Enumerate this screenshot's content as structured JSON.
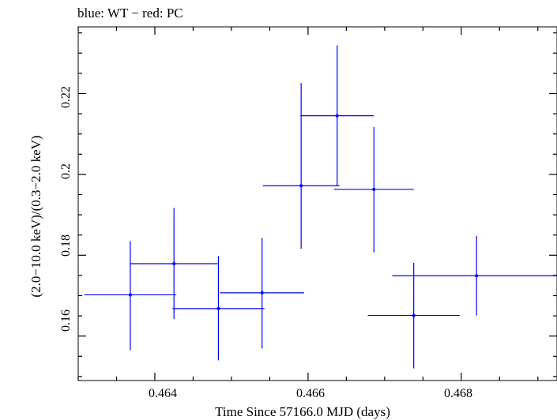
{
  "chart_data": {
    "type": "scatter",
    "title": "blue: WT − red: PC",
    "xlabel": "Time Since 57166.0 MJD (days)",
    "ylabel": "(2.0−10.0 keV)/(0.3−2.0 keV)",
    "xlim": [
      0.463,
      0.46925
    ],
    "ylim": [
      0.149,
      0.2365
    ],
    "x_ticks_major": [
      "0.464",
      "0.466",
      "0.468"
    ],
    "y_ticks_major": [
      "0.16",
      "0.18",
      "0.2",
      "0.22"
    ],
    "colors": {
      "wt": "#0000ff",
      "frame": "#000000"
    },
    "series": [
      {
        "color": "#0000ff",
        "points": [
          {
            "x": 0.46368,
            "x_err": 0.0006,
            "y": 0.1702,
            "y_err_low": 0.0137,
            "y_err_high": 0.0133
          },
          {
            "x": 0.46425,
            "x_err": 0.00057,
            "y": 0.1779,
            "y_err_low": 0.0137,
            "y_err_high": 0.0138
          },
          {
            "x": 0.46483,
            "x_err": 0.0006,
            "y": 0.1668,
            "y_err_low": 0.0128,
            "y_err_high": 0.013
          },
          {
            "x": 0.4654,
            "x_err": 0.00055,
            "y": 0.1707,
            "y_err_low": 0.0138,
            "y_err_high": 0.0136
          },
          {
            "x": 0.46591,
            "x_err": 0.0005,
            "y": 0.1972,
            "y_err_low": 0.0156,
            "y_err_high": 0.0254
          },
          {
            "x": 0.46638,
            "x_err": 0.00048,
            "y": 0.2145,
            "y_err_low": 0.0174,
            "y_err_high": 0.0174
          },
          {
            "x": 0.46686,
            "x_err": 0.00052,
            "y": 0.1963,
            "y_err_low": 0.0156,
            "y_err_high": 0.0154
          },
          {
            "x": 0.46738,
            "x_err": 0.0006,
            "y": 0.1651,
            "y_err_low": 0.0131,
            "y_err_high": 0.013
          },
          {
            "x": 0.4682,
            "x_err": 0.0011,
            "y": 0.1749,
            "y_err_low": 0.0098,
            "y_err_high": 0.0099
          }
        ]
      }
    ]
  }
}
